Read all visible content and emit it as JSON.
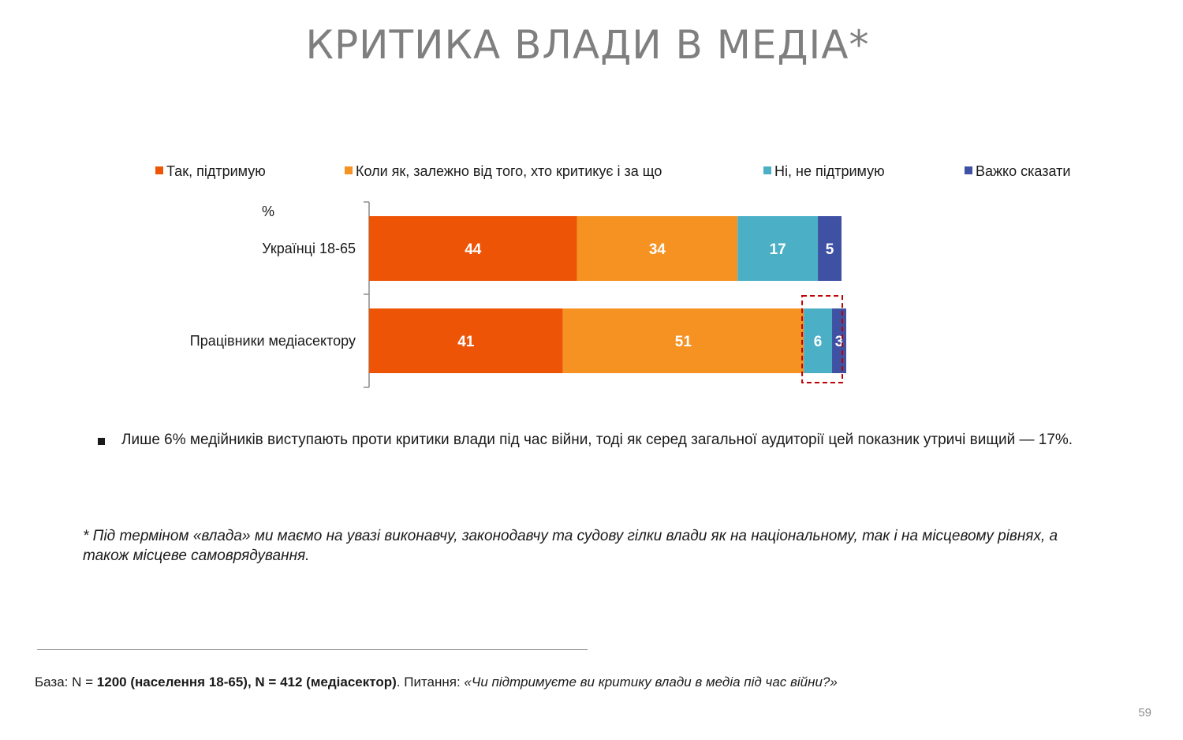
{
  "title": "КРИТИКА ВЛАДИ В МЕДІА*",
  "chart_data": {
    "type": "bar",
    "orientation": "horizontal",
    "stacked": true,
    "unit_label": "%",
    "categories": [
      "Українці 18-65",
      "Працівники медіасектору"
    ],
    "series": [
      {
        "name": "Так, підтримую",
        "values": [
          44,
          41
        ],
        "color": "#ED5406"
      },
      {
        "name": "Коли як, залежно від того, хто критикує і за що",
        "values": [
          34,
          51
        ],
        "color": "#F59222"
      },
      {
        "name": "Ні, не підтримую",
        "values": [
          17,
          6
        ],
        "color": "#4BB0C6"
      },
      {
        "name": "Важко сказати",
        "values": [
          5,
          3
        ],
        "color": "#3F51A3"
      }
    ],
    "xlim": [
      0,
      100
    ],
    "legend_position": "top",
    "highlight": {
      "category_index": 1,
      "series_from": 2,
      "style": "dashed-box",
      "color": "#C00000"
    }
  },
  "bullet": "Лише 6% медійників виступають проти критики влади під час війни, тоді як серед загальної аудиторії цей показник утричі вищий — 17%.",
  "footnote": "* Під терміном «влада» ми маємо на увазі виконавчу, законодавчу та судову гілки влади як на національному, так і на місцевому рівнях, а також місцеве самоврядування.",
  "base": {
    "prefix": "База: N = ",
    "n1": "1200 (населення 18-65)",
    "sep": ", N = ",
    "n2": "412 (медіасектор)",
    "mid": ". Питання: ",
    "question": "«Чи підтримуєте ви критику влади в медіа під час війни?»"
  },
  "page_number": "59"
}
